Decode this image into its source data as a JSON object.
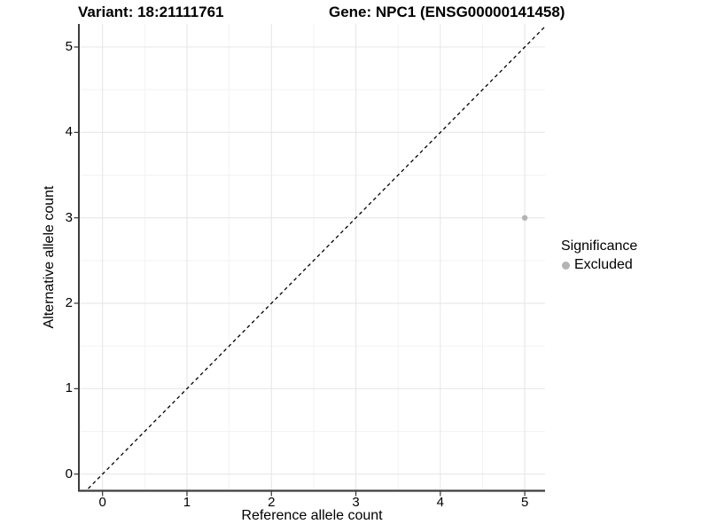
{
  "chart_data": {
    "type": "scatter",
    "title_left": "Variant: 18:21111761",
    "title_right": "Gene: NPC1 (ENSG00000141458)",
    "xlabel": "Reference allele count",
    "ylabel": "Alternative allele count",
    "x_ticks": [
      0,
      1,
      2,
      3,
      4,
      5
    ],
    "y_ticks": [
      0,
      1,
      2,
      3,
      4,
      5
    ],
    "xlim": [
      -0.28,
      5.24
    ],
    "ylim": [
      -0.19,
      5.27
    ],
    "grid": {
      "major": true,
      "minor": true,
      "minor_step": 0.5,
      "major_color": "#e7e7e7",
      "minor_color": "#f3f3f3"
    },
    "abline": {
      "slope": 1,
      "intercept": 0,
      "style": "dashed",
      "color": "#000000"
    },
    "axis_color": "#3d3d3d",
    "series": [
      {
        "name": "Excluded",
        "color": "#b4b4b4",
        "points": [
          {
            "x": 5,
            "y": 3
          }
        ]
      }
    ],
    "legend": {
      "title": "Significance",
      "position": "right",
      "items": [
        {
          "label": "Excluded",
          "color": "#b4b4b4"
        }
      ]
    }
  }
}
